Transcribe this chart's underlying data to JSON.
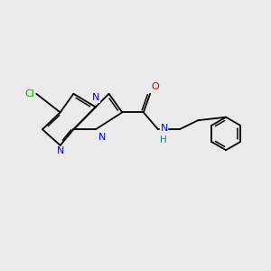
{
  "background_color": "#ebebeb",
  "bond_color": "#000000",
  "figsize": [
    3.0,
    3.0
  ],
  "dpi": 100,
  "atom_colors": {
    "N": "#0000ee",
    "O": "#dd0000",
    "Cl": "#00aa00",
    "H": "#008888",
    "C": "#000000"
  },
  "font_size": 7.5,
  "lw": 1.3
}
